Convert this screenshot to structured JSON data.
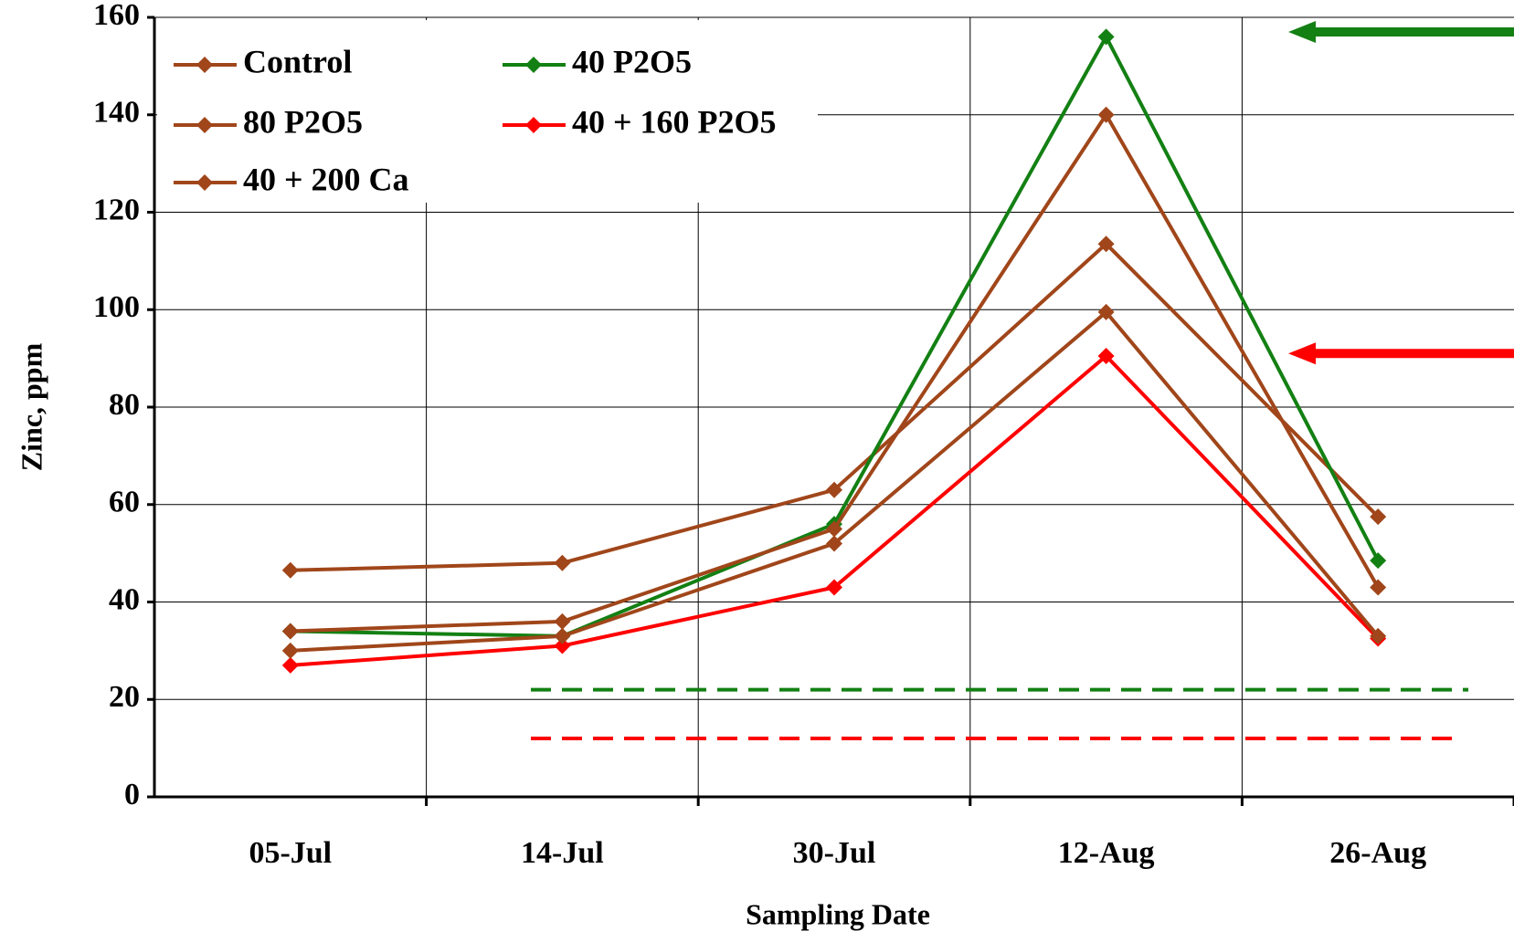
{
  "chart_data": {
    "type": "line",
    "x_label": "Sampling Date",
    "y_label": "Zinc, ppm",
    "categories": [
      "05-Jul",
      "14-Jul",
      "30-Jul",
      "12-Aug",
      "26-Aug"
    ],
    "series": [
      {
        "name": "Control",
        "color": "#a0461a",
        "values": [
          46.5,
          48,
          63,
          113.5,
          57.5
        ]
      },
      {
        "name": "40 P2O5",
        "color": "#138013",
        "values": [
          34,
          33,
          56,
          156,
          48.5
        ]
      },
      {
        "name": "80 P2O5",
        "color": "#a0461a",
        "values": [
          34,
          36,
          55,
          140,
          43
        ]
      },
      {
        "name": "40 + 160 P2O5",
        "color": "#ff0000",
        "values": [
          27,
          31,
          43,
          90.5,
          32.5
        ]
      },
      {
        "name": "40 + 200 Ca",
        "color": "#a0461a",
        "values": [
          30,
          33,
          52,
          99.5,
          33
        ]
      }
    ],
    "reference_lines": [
      {
        "value": 22,
        "color": "#138013"
      },
      {
        "value": 12,
        "color": "#ff0000"
      }
    ],
    "arrows": [
      {
        "value": 157,
        "color": "#138013"
      },
      {
        "value": 91,
        "color": "#ff0000"
      }
    ],
    "ylim": [
      0,
      160
    ],
    "yticks": [
      0,
      20,
      40,
      60,
      80,
      100,
      120,
      140,
      160
    ],
    "grid": true
  }
}
